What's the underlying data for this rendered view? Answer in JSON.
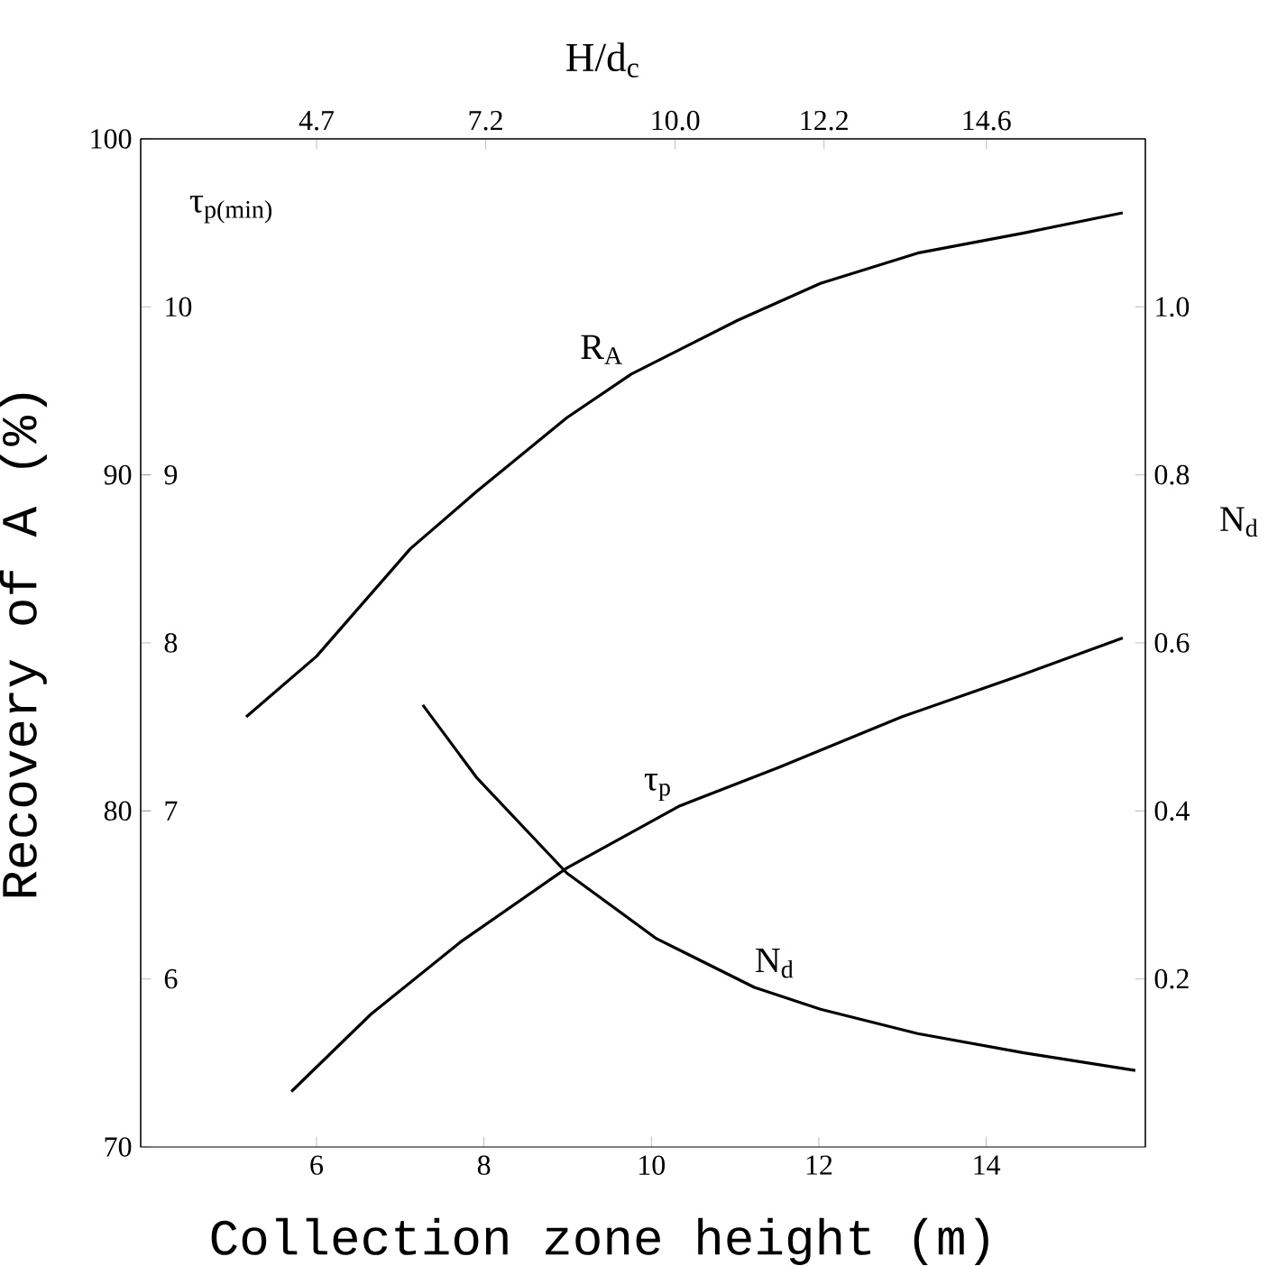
{
  "chart_data": {
    "type": "line",
    "xlabel": "Collection zone height (m)",
    "ylabel": "Recovery of A (%)",
    "y2label": "τ$_{p(min)}$",
    "y3label": "N$_{d}$",
    "x2label": "H/d$_{c}$",
    "xlim": [
      3.9,
      15.9
    ],
    "xticks": [
      6,
      8,
      10,
      12,
      14
    ],
    "x2lim": [
      2.1,
      16.95
    ],
    "x2ticks": [
      4.7,
      7.2,
      {
        "value": 10.0,
        "label": "10.0"
      },
      12.2,
      14.6
    ],
    "ylim": [
      70,
      100
    ],
    "yticks": [
      70,
      80,
      90,
      100
    ],
    "y2lim": [
      5,
      11
    ],
    "y2ticks": [
      6,
      7,
      8,
      9,
      10
    ],
    "y3lim": [
      0,
      1.2
    ],
    "y3ticks": [
      0.2,
      0.4,
      0.6,
      0.8,
      {
        "value": 1.0,
        "label": "1.0"
      }
    ],
    "marker": "none",
    "series": [
      {
        "color": "#000000",
        "x": [
          5.16,
          6.0,
          7.12,
          7.91,
          8.99,
          9.76,
          11.03,
          12.02,
          13.18,
          14.45,
          15.63
        ],
        "values": [
          82.8,
          84.6,
          87.8,
          89.5,
          91.7,
          93.0,
          94.6,
          95.7,
          96.6,
          97.2,
          97.8
        ]
      },
      {
        "axis": "y2",
        "color": "#000000",
        "x": [
          5.7,
          6.65,
          7.72,
          8.99,
          10.34,
          11.53,
          12.99,
          14.37,
          15.63
        ],
        "values": [
          5.33,
          5.79,
          6.22,
          6.66,
          7.03,
          7.26,
          7.56,
          7.8,
          8.03
        ]
      },
      {
        "axis": "y3",
        "color": "#000000",
        "x": [
          7.27,
          7.91,
          8.99,
          10.06,
          11.23,
          12.02,
          13.18,
          14.45,
          15.78
        ],
        "values": [
          0.526,
          0.44,
          0.326,
          0.248,
          0.19,
          0.164,
          0.135,
          0.112,
          0.091
        ]
      }
    ],
    "annotations": [
      {
        "text": "R$_{A}$",
        "x": 9.76,
        "y": 93.0
      },
      {
        "text": "τ$_{p}$",
        "x": 10.34,
        "y": 80.0
      },
      {
        "text": "N$_{d}$",
        "x": 11.2,
        "y": 74.8
      }
    ]
  }
}
